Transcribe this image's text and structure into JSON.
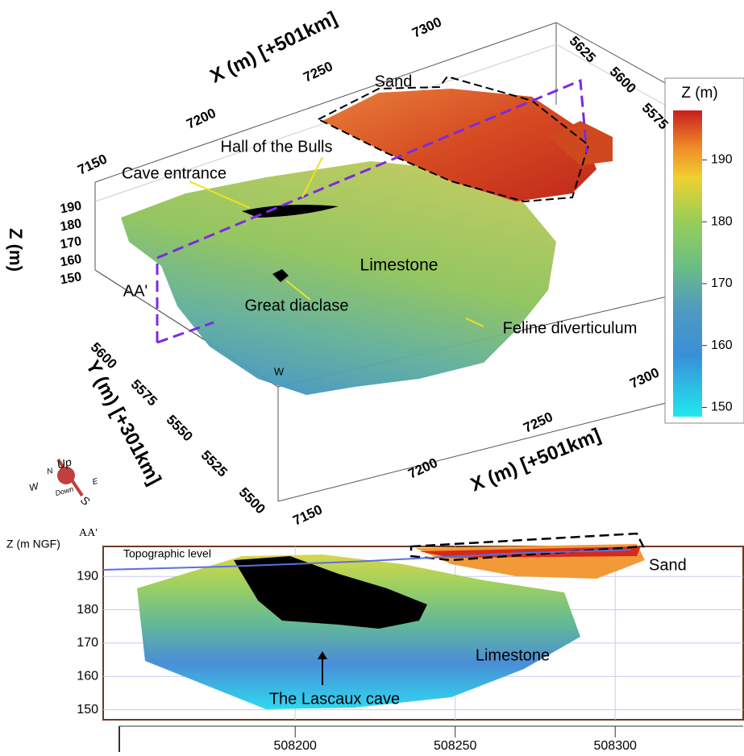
{
  "block_model": {
    "x_axis_top_label": "X (m) [+501km]",
    "x_top_ticks": [
      "7150",
      "7200",
      "7250",
      "7300"
    ],
    "y_top_ticks": [
      "5625",
      "5600",
      "5575"
    ],
    "z_axis_label": "Z (m)",
    "z_ticks": [
      "190",
      "180",
      "170",
      "160",
      "150"
    ],
    "y_axis_label": "Y (m) [+301km]",
    "y_ticks": [
      "5600",
      "5575",
      "5550",
      "5525",
      "5500"
    ],
    "x_axis_bottom_label": "X (m) [+501km]",
    "x_bottom_ticks": [
      "7150",
      "7200",
      "7250",
      "7300"
    ],
    "annotations": [
      "Sand",
      "Hall of the Bulls",
      "Cave entrance",
      "Limestone",
      "AA'",
      "Great diaclase",
      "Feline diverticulum",
      "W"
    ],
    "compass": [
      "Up",
      "N",
      "E",
      "W",
      "S",
      "Down"
    ]
  },
  "colorbar": {
    "title": "Z (m)",
    "lim": [
      148.5,
      198
    ],
    "ticks": [
      150,
      160,
      170,
      180,
      190
    ]
  },
  "chart_data": {
    "type": "line",
    "y_label": "Z (m NGF)",
    "section_label": "AA'",
    "xlim": [
      508140,
      508340
    ],
    "xticks": [
      508200,
      508250,
      508300
    ],
    "ylim": [
      147,
      199
    ],
    "yticks": [
      150,
      160,
      170,
      180,
      190
    ],
    "grid": true,
    "series": [
      {
        "name": "Topographic level",
        "color": "#5a6fe0",
        "x": [
          508140,
          508180,
          508220,
          508240,
          508270,
          508305
        ],
        "values": [
          192,
          193,
          194.5,
          195.5,
          197,
          198
        ]
      }
    ],
    "annotations": [
      "Sand",
      "Limestone",
      "The Lascaux cave"
    ]
  }
}
